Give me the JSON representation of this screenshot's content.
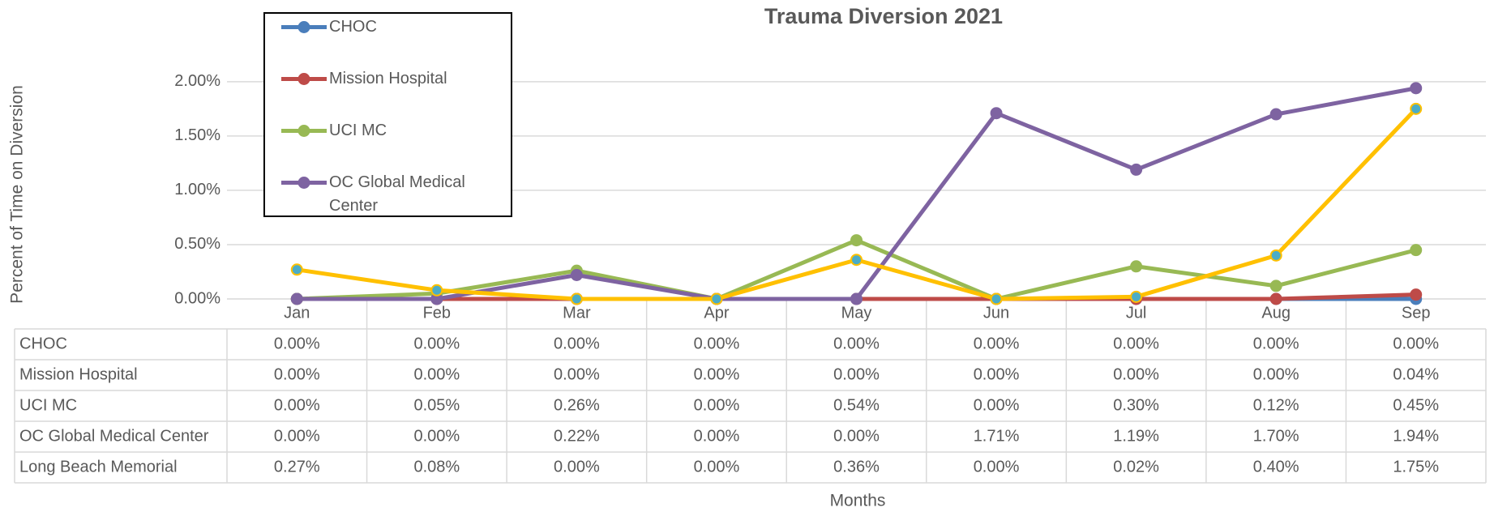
{
  "chart_data": {
    "type": "line",
    "title": "Trauma Diversion 2021",
    "y_label": "Percent of Time on Diversion",
    "x_label": "Months",
    "categories": [
      "Jan",
      "Feb",
      "Mar",
      "Apr",
      "May",
      "Jun",
      "Jul",
      "Aug",
      "Sep"
    ],
    "ylim": [
      0,
      2.2
    ],
    "yticks": [
      {
        "value": 0,
        "label": "0.00%"
      },
      {
        "value": 0.5,
        "label": "0.50%"
      },
      {
        "value": 1,
        "label": "1.00%"
      },
      {
        "value": 1.5,
        "label": "1.50%"
      },
      {
        "value": 2,
        "label": "2.00%"
      }
    ],
    "grid": true,
    "series": [
      {
        "name": "CHOC",
        "color": "#4a7ebb",
        "values": [
          0,
          0,
          0,
          0,
          0,
          0,
          0,
          0,
          0
        ],
        "value_labels": [
          "0.00%",
          "0.00%",
          "0.00%",
          "0.00%",
          "0.00%",
          "0.00%",
          "0.00%",
          "0.00%",
          "0.00%"
        ]
      },
      {
        "name": "Mission Hospital",
        "color": "#be4b48",
        "values": [
          0,
          0,
          0,
          0,
          0,
          0,
          0,
          0,
          0.04
        ],
        "value_labels": [
          "0.00%",
          "0.00%",
          "0.00%",
          "0.00%",
          "0.00%",
          "0.00%",
          "0.00%",
          "0.00%",
          "0.04%"
        ]
      },
      {
        "name": "UCI MC",
        "color": "#98b954",
        "values": [
          0,
          0.05,
          0.26,
          0,
          0.54,
          0,
          0.3,
          0.12,
          0.45
        ],
        "value_labels": [
          "0.00%",
          "0.05%",
          "0.26%",
          "0.00%",
          "0.54%",
          "0.00%",
          "0.30%",
          "0.12%",
          "0.45%"
        ]
      },
      {
        "name": "OC Global Medical Center",
        "color": "#7e63a1",
        "values": [
          0,
          0,
          0.22,
          0,
          0,
          1.71,
          1.19,
          1.7,
          1.94
        ],
        "value_labels": [
          "0.00%",
          "0.00%",
          "0.22%",
          "0.00%",
          "0.00%",
          "1.71%",
          "1.19%",
          "1.70%",
          "1.94%"
        ]
      },
      {
        "name": "Long Beach Memorial",
        "color": "#ffc000",
        "marker_color": "#4bacc6",
        "in_legend": false,
        "values": [
          0.27,
          0.08,
          0,
          0,
          0.36,
          0,
          0.02,
          0.4,
          1.75
        ],
        "value_labels": [
          "0.27%",
          "0.08%",
          "0.00%",
          "0.00%",
          "0.36%",
          "0.00%",
          "0.02%",
          "0.40%",
          "1.75%"
        ]
      }
    ]
  }
}
